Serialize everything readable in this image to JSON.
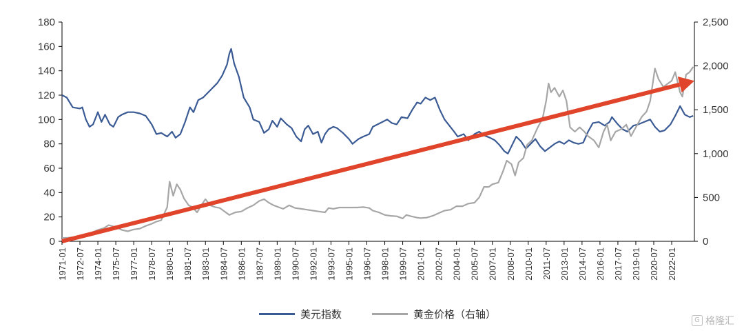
{
  "chart_data": {
    "type": "line",
    "title": "",
    "left_axis": {
      "ticks": [
        "0",
        "20",
        "40",
        "60",
        "80",
        "100",
        "120",
        "140",
        "160",
        "180"
      ],
      "ylim": [
        0,
        180
      ]
    },
    "right_axis": {
      "ticks": [
        "0",
        "500",
        "1,000",
        "1,500",
        "2,000",
        "2,500"
      ],
      "ylim": [
        0,
        2500
      ]
    },
    "x_tick_labels": [
      "1971-01",
      "1972-07",
      "1974-01",
      "1975-07",
      "1977-01",
      "1978-07",
      "1980-01",
      "1981-07",
      "1983-01",
      "1984-07",
      "1986-01",
      "1987-07",
      "1989-01",
      "1990-07",
      "1992-01",
      "1993-07",
      "1995-01",
      "1996-07",
      "1998-01",
      "1999-07",
      "2001-01",
      "2002-07",
      "2004-01",
      "2005-07",
      "2007-01",
      "2008-07",
      "2010-01",
      "2011-07",
      "2013-01",
      "2014-07",
      "2016-01",
      "2017-07",
      "2019-01",
      "2020-07",
      "2022-01"
    ],
    "x_range": [
      1971.0,
      2023.9
    ],
    "series": [
      {
        "name": "美元指数",
        "axis": "left",
        "color": "#3a5a94",
        "points": [
          [
            1971.0,
            120
          ],
          [
            1971.4,
            118
          ],
          [
            1971.9,
            110
          ],
          [
            1972.5,
            109
          ],
          [
            1972.7,
            110
          ],
          [
            1973.0,
            100
          ],
          [
            1973.3,
            94
          ],
          [
            1973.6,
            96
          ],
          [
            1974.0,
            106
          ],
          [
            1974.3,
            98
          ],
          [
            1974.6,
            104
          ],
          [
            1975.0,
            96
          ],
          [
            1975.3,
            94
          ],
          [
            1975.7,
            102
          ],
          [
            1976.0,
            104
          ],
          [
            1976.5,
            106
          ],
          [
            1977.0,
            106
          ],
          [
            1977.5,
            105
          ],
          [
            1978.0,
            103
          ],
          [
            1978.5,
            96
          ],
          [
            1978.9,
            88
          ],
          [
            1979.3,
            89
          ],
          [
            1979.8,
            86
          ],
          [
            1980.2,
            90
          ],
          [
            1980.5,
            85
          ],
          [
            1980.9,
            88
          ],
          [
            1981.3,
            98
          ],
          [
            1981.7,
            110
          ],
          [
            1982.0,
            106
          ],
          [
            1982.4,
            116
          ],
          [
            1982.8,
            118
          ],
          [
            1983.2,
            122
          ],
          [
            1983.6,
            126
          ],
          [
            1984.0,
            130
          ],
          [
            1984.4,
            136
          ],
          [
            1984.8,
            145
          ],
          [
            1985.0,
            154
          ],
          [
            1985.15,
            158
          ],
          [
            1985.4,
            146
          ],
          [
            1985.8,
            135
          ],
          [
            1986.2,
            118
          ],
          [
            1986.7,
            110
          ],
          [
            1987.0,
            100
          ],
          [
            1987.5,
            98
          ],
          [
            1987.9,
            89
          ],
          [
            1988.3,
            92
          ],
          [
            1988.6,
            99
          ],
          [
            1989.0,
            94
          ],
          [
            1989.3,
            101
          ],
          [
            1989.8,
            96
          ],
          [
            1990.2,
            93
          ],
          [
            1990.6,
            86
          ],
          [
            1991.0,
            82
          ],
          [
            1991.3,
            92
          ],
          [
            1991.6,
            95
          ],
          [
            1992.0,
            88
          ],
          [
            1992.4,
            90
          ],
          [
            1992.7,
            81
          ],
          [
            1993.0,
            88
          ],
          [
            1993.3,
            92
          ],
          [
            1993.7,
            94
          ],
          [
            1994.0,
            93
          ],
          [
            1994.5,
            89
          ],
          [
            1995.0,
            84
          ],
          [
            1995.3,
            80
          ],
          [
            1995.8,
            84
          ],
          [
            1996.2,
            86
          ],
          [
            1996.7,
            88
          ],
          [
            1997.0,
            94
          ],
          [
            1997.4,
            96
          ],
          [
            1997.8,
            98
          ],
          [
            1998.2,
            100
          ],
          [
            1998.6,
            97
          ],
          [
            1999.0,
            96
          ],
          [
            1999.4,
            102
          ],
          [
            1999.9,
            101
          ],
          [
            2000.3,
            108
          ],
          [
            2000.7,
            114
          ],
          [
            2001.0,
            113
          ],
          [
            2001.4,
            118
          ],
          [
            2001.8,
            116
          ],
          [
            2002.2,
            118
          ],
          [
            2002.6,
            108
          ],
          [
            2003.0,
            100
          ],
          [
            2003.4,
            95
          ],
          [
            2003.8,
            90
          ],
          [
            2004.1,
            86
          ],
          [
            2004.6,
            88
          ],
          [
            2005.0,
            83
          ],
          [
            2005.5,
            88
          ],
          [
            2005.9,
            90
          ],
          [
            2006.3,
            87
          ],
          [
            2006.8,
            85
          ],
          [
            2007.2,
            83
          ],
          [
            2007.6,
            79
          ],
          [
            2008.0,
            74
          ],
          [
            2008.3,
            72
          ],
          [
            2008.7,
            80
          ],
          [
            2009.0,
            86
          ],
          [
            2009.4,
            82
          ],
          [
            2009.8,
            76
          ],
          [
            2010.2,
            80
          ],
          [
            2010.6,
            84
          ],
          [
            2011.0,
            78
          ],
          [
            2011.4,
            74
          ],
          [
            2011.8,
            77
          ],
          [
            2012.2,
            80
          ],
          [
            2012.6,
            82
          ],
          [
            2013.0,
            80
          ],
          [
            2013.4,
            83
          ],
          [
            2013.8,
            81
          ],
          [
            2014.2,
            80
          ],
          [
            2014.6,
            81
          ],
          [
            2015.0,
            90
          ],
          [
            2015.4,
            97
          ],
          [
            2015.9,
            98
          ],
          [
            2016.4,
            95
          ],
          [
            2016.8,
            98
          ],
          [
            2017.0,
            102
          ],
          [
            2017.5,
            96
          ],
          [
            2017.9,
            92
          ],
          [
            2018.3,
            90
          ],
          [
            2018.8,
            95
          ],
          [
            2019.2,
            96
          ],
          [
            2019.7,
            98
          ],
          [
            2020.2,
            100
          ],
          [
            2020.6,
            94
          ],
          [
            2021.0,
            90
          ],
          [
            2021.4,
            91
          ],
          [
            2021.9,
            96
          ],
          [
            2022.3,
            103
          ],
          [
            2022.7,
            111
          ],
          [
            2023.1,
            104
          ],
          [
            2023.5,
            102
          ],
          [
            2023.8,
            103
          ]
        ]
      },
      {
        "name": "黄金价格（右轴）",
        "axis": "right",
        "color": "#a6a6a6",
        "points": [
          [
            1971.0,
            38
          ],
          [
            1971.5,
            40
          ],
          [
            1972.0,
            46
          ],
          [
            1972.5,
            60
          ],
          [
            1973.0,
            65
          ],
          [
            1973.5,
            100
          ],
          [
            1974.0,
            130
          ],
          [
            1974.5,
            150
          ],
          [
            1974.9,
            185
          ],
          [
            1975.3,
            170
          ],
          [
            1975.7,
            150
          ],
          [
            1976.0,
            130
          ],
          [
            1976.5,
            115
          ],
          [
            1977.0,
            135
          ],
          [
            1977.5,
            145
          ],
          [
            1978.0,
            175
          ],
          [
            1978.5,
            200
          ],
          [
            1978.9,
            225
          ],
          [
            1979.3,
            240
          ],
          [
            1979.8,
            390
          ],
          [
            1980.0,
            680
          ],
          [
            1980.3,
            520
          ],
          [
            1980.6,
            650
          ],
          [
            1980.9,
            590
          ],
          [
            1981.2,
            490
          ],
          [
            1981.6,
            410
          ],
          [
            1981.9,
            390
          ],
          [
            1982.3,
            330
          ],
          [
            1982.7,
            420
          ],
          [
            1983.0,
            480
          ],
          [
            1983.4,
            410
          ],
          [
            1983.8,
            390
          ],
          [
            1984.2,
            380
          ],
          [
            1984.6,
            340
          ],
          [
            1985.0,
            300
          ],
          [
            1985.5,
            330
          ],
          [
            1986.0,
            340
          ],
          [
            1986.5,
            380
          ],
          [
            1987.0,
            410
          ],
          [
            1987.5,
            460
          ],
          [
            1987.9,
            480
          ],
          [
            1988.3,
            440
          ],
          [
            1988.7,
            410
          ],
          [
            1989.1,
            390
          ],
          [
            1989.5,
            370
          ],
          [
            1990.0,
            410
          ],
          [
            1990.5,
            380
          ],
          [
            1991.0,
            370
          ],
          [
            1991.5,
            360
          ],
          [
            1992.0,
            350
          ],
          [
            1992.5,
            340
          ],
          [
            1993.0,
            330
          ],
          [
            1993.3,
            380
          ],
          [
            1993.7,
            370
          ],
          [
            1994.2,
            385
          ],
          [
            1994.7,
            385
          ],
          [
            1995.2,
            385
          ],
          [
            1995.7,
            385
          ],
          [
            1996.2,
            390
          ],
          [
            1996.7,
            380
          ],
          [
            1997.0,
            350
          ],
          [
            1997.5,
            330
          ],
          [
            1998.0,
            300
          ],
          [
            1998.5,
            290
          ],
          [
            1999.0,
            285
          ],
          [
            1999.5,
            260
          ],
          [
            1999.8,
            300
          ],
          [
            2000.2,
            285
          ],
          [
            2000.7,
            270
          ],
          [
            2001.0,
            265
          ],
          [
            2001.5,
            270
          ],
          [
            2002.0,
            290
          ],
          [
            2002.5,
            320
          ],
          [
            2003.0,
            350
          ],
          [
            2003.5,
            360
          ],
          [
            2004.0,
            400
          ],
          [
            2004.5,
            400
          ],
          [
            2005.0,
            430
          ],
          [
            2005.5,
            440
          ],
          [
            2005.9,
            500
          ],
          [
            2006.3,
            620
          ],
          [
            2006.7,
            620
          ],
          [
            2007.0,
            650
          ],
          [
            2007.5,
            670
          ],
          [
            2007.9,
            800
          ],
          [
            2008.2,
            920
          ],
          [
            2008.6,
            880
          ],
          [
            2008.9,
            750
          ],
          [
            2009.2,
            900
          ],
          [
            2009.6,
            950
          ],
          [
            2009.9,
            1100
          ],
          [
            2010.3,
            1150
          ],
          [
            2010.8,
            1300
          ],
          [
            2011.2,
            1400
          ],
          [
            2011.5,
            1600
          ],
          [
            2011.7,
            1800
          ],
          [
            2011.9,
            1700
          ],
          [
            2012.2,
            1750
          ],
          [
            2012.6,
            1650
          ],
          [
            2012.9,
            1720
          ],
          [
            2013.2,
            1600
          ],
          [
            2013.5,
            1300
          ],
          [
            2013.9,
            1250
          ],
          [
            2014.3,
            1300
          ],
          [
            2014.7,
            1250
          ],
          [
            2015.0,
            1200
          ],
          [
            2015.5,
            1150
          ],
          [
            2015.9,
            1070
          ],
          [
            2016.3,
            1250
          ],
          [
            2016.6,
            1330
          ],
          [
            2016.9,
            1150
          ],
          [
            2017.3,
            1250
          ],
          [
            2017.8,
            1280
          ],
          [
            2018.2,
            1330
          ],
          [
            2018.6,
            1200
          ],
          [
            2019.0,
            1300
          ],
          [
            2019.5,
            1420
          ],
          [
            2019.9,
            1480
          ],
          [
            2020.2,
            1600
          ],
          [
            2020.6,
            1970
          ],
          [
            2020.9,
            1850
          ],
          [
            2021.3,
            1760
          ],
          [
            2021.7,
            1800
          ],
          [
            2022.0,
            1830
          ],
          [
            2022.3,
            1930
          ],
          [
            2022.7,
            1700
          ],
          [
            2022.9,
            1650
          ],
          [
            2023.2,
            1900
          ],
          [
            2023.5,
            1930
          ],
          [
            2023.8,
            1990
          ]
        ]
      }
    ],
    "trend_arrow": {
      "color": "#e0442a",
      "from": [
        1971.0,
        0
      ],
      "to": [
        2023.9,
        1830
      ],
      "to_axis": "right"
    },
    "legend": [
      {
        "label": "美元指数",
        "color": "#3a5a94"
      },
      {
        "label": "黄金价格（右轴）",
        "color": "#a6a6a6"
      }
    ],
    "legend_position": "bottom"
  },
  "watermark": {
    "text": "格隆汇",
    "icon": "G"
  }
}
